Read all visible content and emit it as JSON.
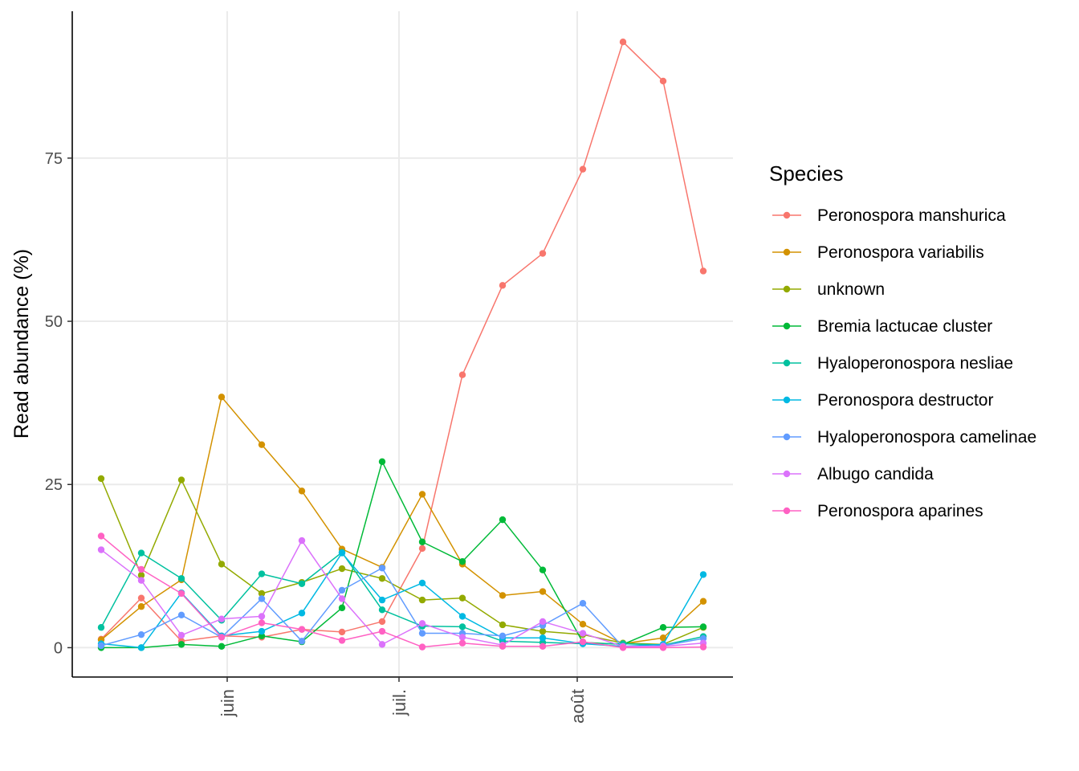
{
  "chart_data": {
    "type": "line",
    "xlabel": "",
    "ylabel": "Read abundance (%)",
    "x_tick_labels": [
      "juin",
      "juil.",
      "août"
    ],
    "y_ticks": [
      0,
      25,
      50,
      75
    ],
    "ylim": [
      -4.5,
      97.5
    ],
    "grid": true,
    "legend_title": "Species",
    "legend_position": "right",
    "series": [
      {
        "name": "Peronospora manshurica",
        "color": "#F8766D",
        "values": [
          1.3,
          7.6,
          1.0,
          1.8,
          1.6,
          2.8,
          2.4,
          4.0,
          15.2,
          41.8,
          55.5,
          60.4,
          73.3,
          92.8,
          86.8,
          57.7
        ]
      },
      {
        "name": "Peronospora variabilis",
        "color": "#D39200",
        "values": [
          1.2,
          6.3,
          10.4,
          38.4,
          31.1,
          24.0,
          15.1,
          12.3,
          23.5,
          12.8,
          8.0,
          8.6,
          3.6,
          0.6,
          1.5,
          7.1
        ]
      },
      {
        "name": "unknown",
        "color": "#93AA00",
        "values": [
          25.9,
          11.1,
          25.7,
          12.8,
          8.3,
          10.0,
          12.1,
          10.6,
          7.3,
          7.6,
          3.5,
          2.5,
          2.0,
          0.7,
          0.5,
          3.1
        ]
      },
      {
        "name": "Bremia lactucae cluster",
        "color": "#00BA38",
        "values": [
          0.0,
          0.0,
          0.5,
          0.2,
          1.8,
          0.9,
          6.1,
          28.5,
          16.2,
          13.2,
          19.6,
          11.9,
          0.8,
          0.5,
          3.1,
          3.2
        ]
      },
      {
        "name": "Hyaloperonospora nesliae",
        "color": "#00C19F",
        "values": [
          3.1,
          14.5,
          10.6,
          4.2,
          11.3,
          9.8,
          14.6,
          5.8,
          3.3,
          3.2,
          1.0,
          0.8,
          0.6,
          0.6,
          0.4,
          1.7
        ]
      },
      {
        "name": "Peronospora destructor",
        "color": "#00B9E3",
        "values": [
          0.6,
          0.0,
          8.4,
          1.8,
          2.5,
          5.3,
          14.5,
          7.3,
          9.9,
          4.8,
          1.5,
          1.5,
          0.6,
          0.2,
          0.5,
          11.2
        ]
      },
      {
        "name": "Hyaloperonospora camelinae",
        "color": "#619CFF",
        "values": [
          0.3,
          2.0,
          5.0,
          1.6,
          7.5,
          1.0,
          8.8,
          12.2,
          2.2,
          2.2,
          1.8,
          3.4,
          6.8,
          0.1,
          0.3,
          1.4
        ]
      },
      {
        "name": "Albugo candida",
        "color": "#DB72FB",
        "values": [
          15.0,
          10.3,
          1.9,
          4.4,
          4.8,
          16.4,
          7.5,
          0.5,
          3.7,
          1.6,
          0.4,
          4.0,
          2.2,
          0.2,
          0.2,
          0.7
        ]
      },
      {
        "name": "Peronospora aparines",
        "color": "#FF61C3",
        "values": [
          17.1,
          12.0,
          8.3,
          1.6,
          3.8,
          2.8,
          1.1,
          2.5,
          0.1,
          0.7,
          0.2,
          0.2,
          0.9,
          0.0,
          0.0,
          0.1
        ]
      }
    ]
  }
}
